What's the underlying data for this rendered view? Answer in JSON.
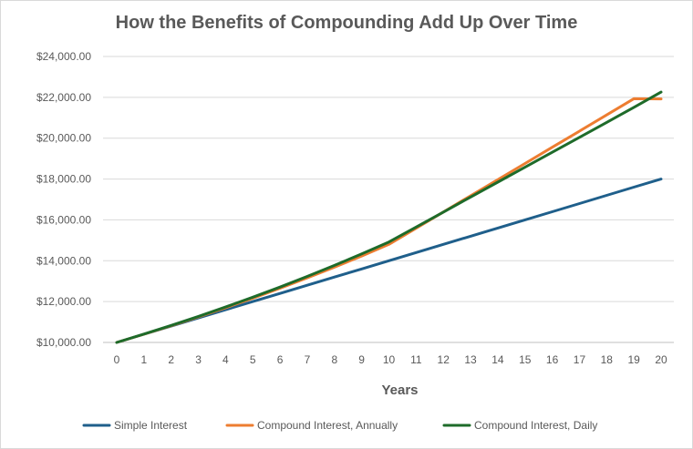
{
  "colors": {
    "simple": "#1f5f8b",
    "annual": "#ed7d31",
    "daily": "#1e6b2a",
    "grid": "#d9d9d9",
    "axis": "#bfbfbf",
    "text": "#595959"
  },
  "chart_data": {
    "type": "line",
    "title": "How the Benefits of Compounding Add Up Over Time",
    "xlabel": "Years",
    "ylabel": "",
    "x": [
      0,
      1,
      2,
      3,
      4,
      5,
      6,
      7,
      8,
      9,
      10,
      11,
      12,
      13,
      14,
      15,
      16,
      17,
      18,
      19,
      20
    ],
    "xlim": [
      0,
      20
    ],
    "ylim": [
      10000,
      24000
    ],
    "yticks": [
      10000,
      12000,
      14000,
      16000,
      18000,
      20000,
      22000,
      24000
    ],
    "ytick_labels": [
      "$10,000.00",
      "$12,000.00",
      "$14,000.00",
      "$16,000.00",
      "$18,000.00",
      "$20,000.00",
      "$22,000.00",
      "$24,000.00"
    ],
    "grid": true,
    "legend": "bottom",
    "series": [
      {
        "name": "Simple Interest",
        "color_key": "simple",
        "values": [
          10000,
          10400,
          10800,
          11200,
          11600,
          12000,
          12400,
          12800,
          13200,
          13600,
          14000,
          14400,
          14800,
          15200,
          15600,
          16000,
          16400,
          16800,
          17200,
          17600,
          18000
        ]
      },
      {
        "name": "Compound Interest, Annually",
        "color_key": "annual",
        "values": [
          10000,
          10400,
          10816,
          11249,
          11699,
          12167,
          12653,
          13159,
          13686,
          14233,
          14802,
          15593,
          16385,
          17177,
          17969,
          18761,
          19553,
          20345,
          21137,
          21929,
          21921
        ]
      },
      {
        "name": "Compound Interest, Daily",
        "color_key": "daily",
        "values": [
          10000,
          10408,
          10833,
          11275,
          11735,
          12214,
          12712,
          13231,
          13771,
          14333,
          14918,
          15650,
          16382,
          17114,
          17846,
          18578,
          19310,
          20042,
          20774,
          21506,
          22255
        ]
      }
    ]
  }
}
